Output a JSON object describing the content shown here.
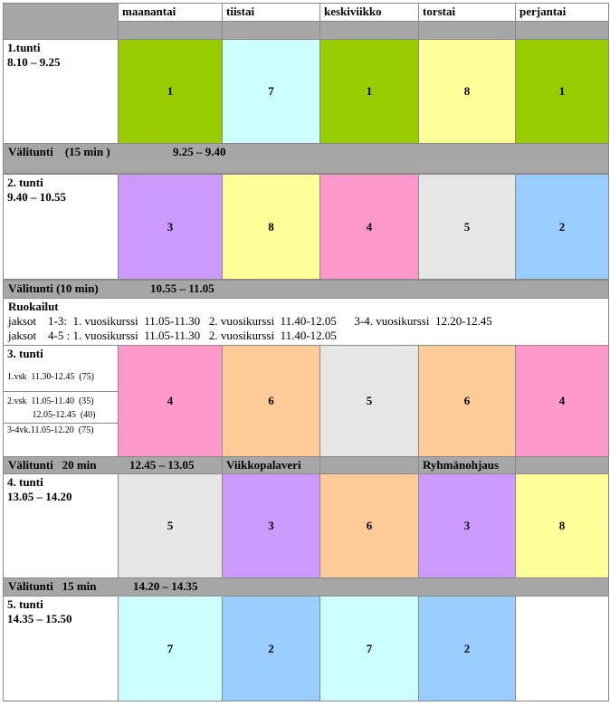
{
  "table": {
    "days": [
      "maanantai",
      "tiistai",
      "keskiviikko",
      "torstai",
      "perjantai"
    ],
    "rows": [
      {
        "kind": "lesson",
        "title": "1.tunti",
        "time": "8.10 – 9.25",
        "cells": [
          {
            "value": "1",
            "color": "#99cc00"
          },
          {
            "value": "7",
            "color": "#ccffff"
          },
          {
            "value": "1",
            "color": "#99cc00"
          },
          {
            "value": "8",
            "color": "#ffff99"
          },
          {
            "value": "1",
            "color": "#99cc00"
          }
        ]
      },
      {
        "kind": "break",
        "title": "Välitunti    (15 min )",
        "time": "9.25 – 9.40"
      },
      {
        "kind": "lesson",
        "title": "2. tunti",
        "time": "9.40 – 10.55",
        "cells": [
          {
            "value": "3",
            "color": "#cc99ff"
          },
          {
            "value": "8",
            "color": "#ffff99"
          },
          {
            "value": "4",
            "color": "#ff99cc"
          },
          {
            "value": "5",
            "color": "#e6e6e6"
          },
          {
            "value": "2",
            "color": "#99ccff"
          }
        ]
      },
      {
        "kind": "break",
        "title": "Välitunti (10 min)",
        "time": "10.55 – 11.05"
      },
      {
        "kind": "lunch",
        "title": "Ruokailut",
        "lines": [
          "jaksot    1-3:  1. vuosikurssi  11.05-11.30   2. vuosikurssi  11.40-12.05      3-4. vuosikurssi  12.20-12.45",
          "jaksot    4-5 : 1. vuosikurssi  11.05-11.30   2. vuosikurssi  11.40-12.05"
        ]
      },
      {
        "kind": "lesson",
        "title": "3. tunti",
        "notes": [
          "1.vsk  11.30-12.45  (75)",
          "2.vsk  11.05-11.40  (35)",
          "           12.05-12.45  (40)",
          "3-4vk.11.05-12.20  (75)"
        ],
        "cells": [
          {
            "value": "4",
            "color": "#ff99cc"
          },
          {
            "value": "6",
            "color": "#ffcc99"
          },
          {
            "value": "5",
            "color": "#e6e6e6"
          },
          {
            "value": "6",
            "color": "#ffcc99"
          },
          {
            "value": "4",
            "color": "#ff99cc"
          }
        ]
      },
      {
        "kind": "break",
        "title": "Välitunti   20 min",
        "time": "12.45 – 13.05",
        "extras": [
          null,
          "Viikkopalaveri",
          null,
          "Ryhmänohjaus",
          null
        ]
      },
      {
        "kind": "lesson",
        "title": "4. tunti",
        "time": "13.05 – 14.20",
        "cells": [
          {
            "value": "5",
            "color": "#e6e6e6"
          },
          {
            "value": "3",
            "color": "#cc99ff"
          },
          {
            "value": "6",
            "color": "#ffcc99"
          },
          {
            "value": "3",
            "color": "#cc99ff"
          },
          {
            "value": "8",
            "color": "#ffff99"
          }
        ]
      },
      {
        "kind": "break",
        "title": "Välitunti   15 min",
        "time": "14.20 – 14.35"
      },
      {
        "kind": "lesson",
        "title": "5. tunti",
        "time": "14.35 – 15.50",
        "cells": [
          {
            "value": "7",
            "color": "#ccffff"
          },
          {
            "value": "2",
            "color": "#99ccff"
          },
          {
            "value": "7",
            "color": "#ccffff"
          },
          {
            "value": "2",
            "color": "#99ccff"
          },
          {
            "value": null,
            "color": "#ffffff"
          }
        ]
      }
    ]
  }
}
